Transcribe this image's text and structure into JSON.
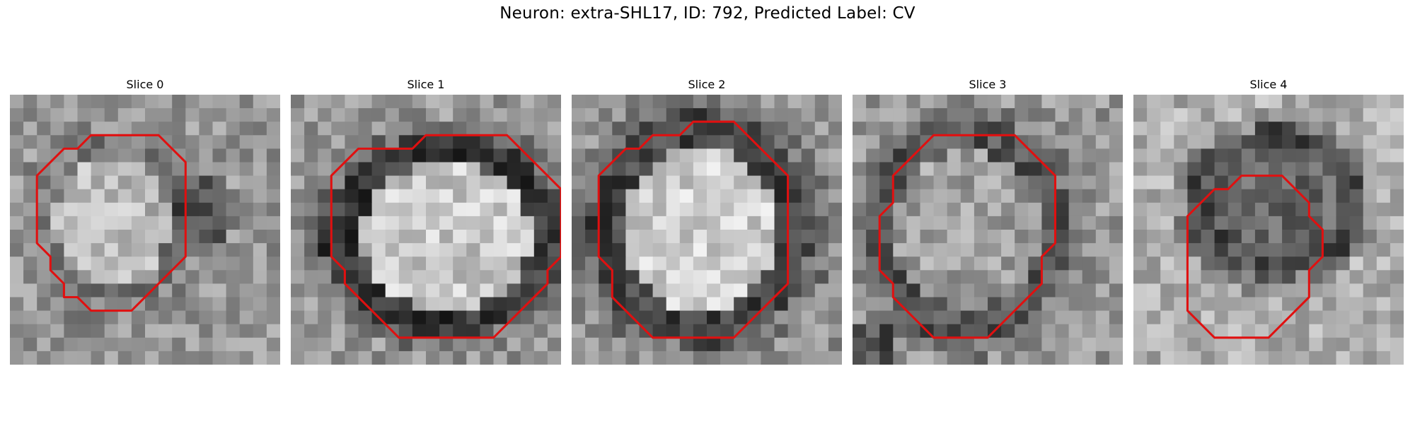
{
  "figure": {
    "title": "Neuron: extra-SHL17, ID: 792, Predicted Label: CV"
  },
  "contour_color": "#e01010",
  "panels": [
    {
      "title": "Slice 0",
      "image": "grayscale-microscopy-slice",
      "contour": [
        [
          9,
          3
        ],
        [
          11,
          3
        ],
        [
          12,
          4
        ],
        [
          13,
          5
        ],
        [
          13,
          6
        ],
        [
          13,
          7
        ],
        [
          13,
          8
        ],
        [
          13,
          9
        ],
        [
          13,
          10
        ],
        [
          13,
          11
        ],
        [
          13,
          12
        ],
        [
          12,
          13
        ],
        [
          11,
          14
        ],
        [
          10,
          15
        ],
        [
          9,
          16
        ],
        [
          8,
          16
        ],
        [
          7,
          16
        ],
        [
          6,
          16
        ],
        [
          5,
          15
        ],
        [
          4,
          15
        ],
        [
          4,
          14
        ],
        [
          3,
          13
        ],
        [
          3,
          12
        ],
        [
          2,
          11
        ],
        [
          2,
          10
        ],
        [
          2,
          9
        ],
        [
          2,
          8
        ],
        [
          2,
          7
        ],
        [
          2,
          6
        ],
        [
          3,
          5
        ],
        [
          4,
          4
        ],
        [
          5,
          4
        ],
        [
          6,
          3
        ],
        [
          7,
          3
        ],
        [
          8,
          3
        ]
      ]
    },
    {
      "title": "Slice 1",
      "image": "grayscale-microscopy-slice",
      "contour": [
        [
          15,
          3
        ],
        [
          16,
          3
        ],
        [
          17,
          4
        ],
        [
          18,
          5
        ],
        [
          19,
          6
        ],
        [
          20,
          7
        ],
        [
          20,
          8
        ],
        [
          20,
          9
        ],
        [
          20,
          10
        ],
        [
          20,
          11
        ],
        [
          20,
          12
        ],
        [
          19,
          13
        ],
        [
          19,
          14
        ],
        [
          18,
          15
        ],
        [
          17,
          16
        ],
        [
          16,
          17
        ],
        [
          15,
          18
        ],
        [
          14,
          18
        ],
        [
          13,
          18
        ],
        [
          12,
          18
        ],
        [
          11,
          18
        ],
        [
          10,
          18
        ],
        [
          9,
          18
        ],
        [
          8,
          18
        ],
        [
          7,
          17
        ],
        [
          6,
          16
        ],
        [
          5,
          15
        ],
        [
          4,
          14
        ],
        [
          4,
          13
        ],
        [
          3,
          12
        ],
        [
          3,
          11
        ],
        [
          3,
          10
        ],
        [
          3,
          9
        ],
        [
          3,
          8
        ],
        [
          3,
          7
        ],
        [
          3,
          6
        ],
        [
          4,
          5
        ],
        [
          5,
          4
        ],
        [
          6,
          4
        ],
        [
          7,
          4
        ],
        [
          8,
          4
        ],
        [
          9,
          4
        ],
        [
          10,
          3
        ],
        [
          11,
          3
        ],
        [
          12,
          3
        ],
        [
          13,
          3
        ],
        [
          14,
          3
        ]
      ]
    },
    {
      "title": "Slice 2",
      "image": "grayscale-microscopy-slice",
      "contour": [
        [
          10,
          2
        ],
        [
          11,
          2
        ],
        [
          12,
          2
        ],
        [
          13,
          3
        ],
        [
          14,
          4
        ],
        [
          15,
          5
        ],
        [
          16,
          6
        ],
        [
          16,
          7
        ],
        [
          16,
          8
        ],
        [
          16,
          9
        ],
        [
          16,
          10
        ],
        [
          16,
          11
        ],
        [
          16,
          12
        ],
        [
          16,
          13
        ],
        [
          16,
          14
        ],
        [
          15,
          15
        ],
        [
          14,
          16
        ],
        [
          13,
          17
        ],
        [
          12,
          18
        ],
        [
          11,
          18
        ],
        [
          10,
          18
        ],
        [
          9,
          18
        ],
        [
          8,
          18
        ],
        [
          7,
          18
        ],
        [
          6,
          18
        ],
        [
          5,
          17
        ],
        [
          4,
          16
        ],
        [
          3,
          15
        ],
        [
          3,
          14
        ],
        [
          3,
          13
        ],
        [
          2,
          12
        ],
        [
          2,
          11
        ],
        [
          2,
          10
        ],
        [
          2,
          9
        ],
        [
          2,
          8
        ],
        [
          2,
          7
        ],
        [
          2,
          6
        ],
        [
          3,
          5
        ],
        [
          4,
          4
        ],
        [
          5,
          4
        ],
        [
          6,
          3
        ],
        [
          7,
          3
        ],
        [
          8,
          3
        ],
        [
          9,
          2
        ]
      ]
    },
    {
      "title": "Slice 3",
      "image": "grayscale-microscopy-slice",
      "contour": [
        [
          11,
          3
        ],
        [
          12,
          3
        ],
        [
          13,
          4
        ],
        [
          14,
          5
        ],
        [
          15,
          6
        ],
        [
          15,
          7
        ],
        [
          15,
          8
        ],
        [
          15,
          9
        ],
        [
          15,
          10
        ],
        [
          15,
          11
        ],
        [
          14,
          12
        ],
        [
          14,
          13
        ],
        [
          14,
          14
        ],
        [
          13,
          15
        ],
        [
          12,
          16
        ],
        [
          11,
          17
        ],
        [
          10,
          18
        ],
        [
          9,
          18
        ],
        [
          8,
          18
        ],
        [
          7,
          18
        ],
        [
          6,
          18
        ],
        [
          5,
          17
        ],
        [
          4,
          16
        ],
        [
          3,
          15
        ],
        [
          3,
          14
        ],
        [
          2,
          13
        ],
        [
          2,
          12
        ],
        [
          2,
          11
        ],
        [
          2,
          10
        ],
        [
          2,
          9
        ],
        [
          3,
          8
        ],
        [
          3,
          7
        ],
        [
          3,
          6
        ],
        [
          4,
          5
        ],
        [
          5,
          4
        ],
        [
          6,
          3
        ],
        [
          7,
          3
        ],
        [
          8,
          3
        ],
        [
          9,
          3
        ],
        [
          10,
          3
        ]
      ]
    },
    {
      "title": "Slice 4",
      "image": "grayscale-microscopy-slice",
      "contour": [
        [
          10,
          6
        ],
        [
          11,
          6
        ],
        [
          12,
          7
        ],
        [
          13,
          8
        ],
        [
          13,
          9
        ],
        [
          14,
          10
        ],
        [
          14,
          11
        ],
        [
          14,
          12
        ],
        [
          13,
          13
        ],
        [
          13,
          14
        ],
        [
          13,
          15
        ],
        [
          12,
          16
        ],
        [
          11,
          17
        ],
        [
          10,
          18
        ],
        [
          9,
          18
        ],
        [
          8,
          18
        ],
        [
          7,
          18
        ],
        [
          6,
          18
        ],
        [
          5,
          17
        ],
        [
          4,
          16
        ],
        [
          4,
          15
        ],
        [
          4,
          14
        ],
        [
          4,
          13
        ],
        [
          4,
          12
        ],
        [
          4,
          11
        ],
        [
          4,
          10
        ],
        [
          4,
          9
        ],
        [
          5,
          8
        ],
        [
          6,
          7
        ],
        [
          7,
          7
        ],
        [
          8,
          6
        ],
        [
          9,
          6
        ]
      ]
    }
  ]
}
